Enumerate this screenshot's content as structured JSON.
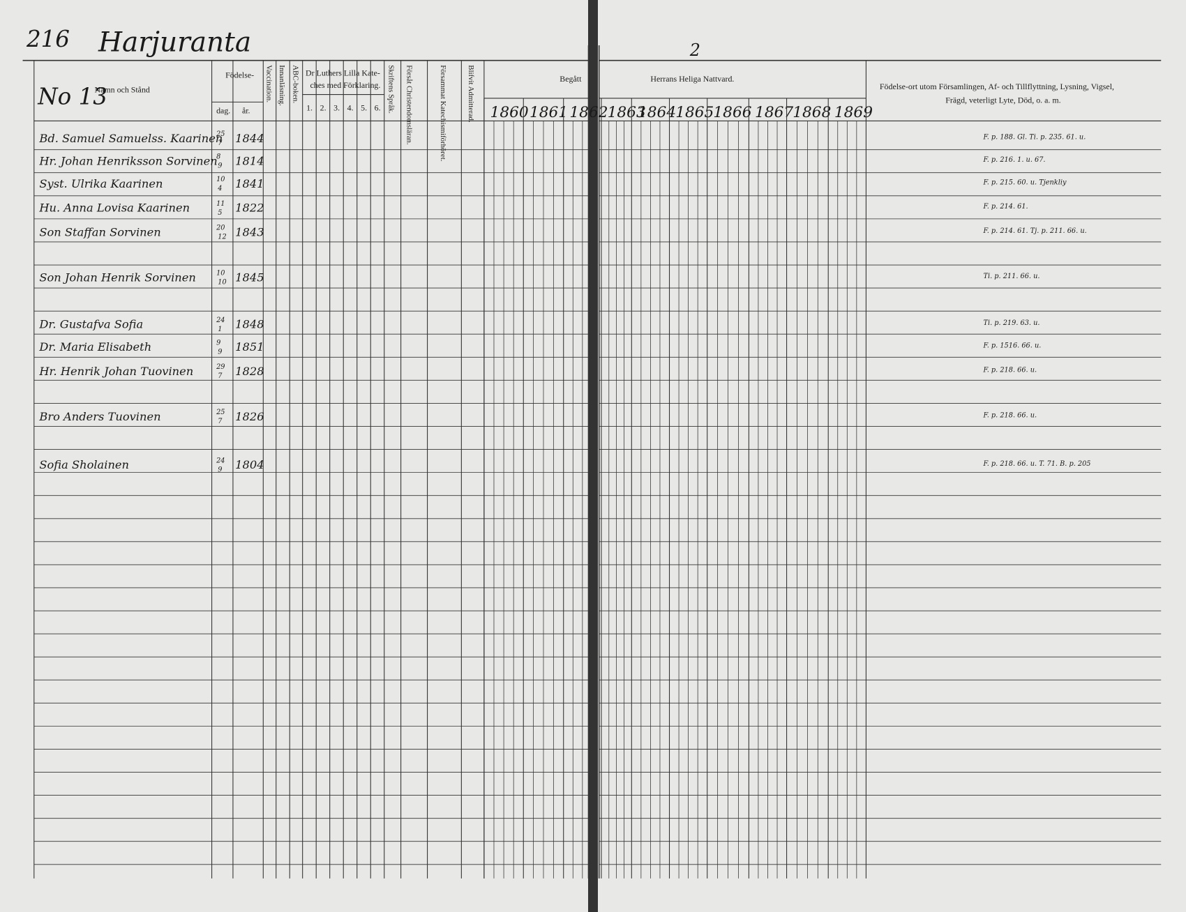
{
  "header": {
    "page_number": "216",
    "village": "Harjuranta",
    "right_page_number": "2",
    "household_number": "No 13"
  },
  "columns": {
    "name": "Namn och Stånd",
    "birth": "Födelse-",
    "birth_day": "dag.",
    "birth_year": "år.",
    "vaccination": "Vaccination.",
    "reading": "Innanläsning.",
    "abc": "ABC-boken.",
    "catechism_1": "Dr Luthers Lilla Kate-",
    "catechism_2": "ches med Förklaring.",
    "catechism_parts": [
      "1.",
      "2.",
      "3.",
      "4.",
      "5.",
      "6."
    ],
    "scripture": "Skriftens Språk.",
    "christianity": "Försåt Christendomsläran.",
    "catechism_exam": "Försammat Katechismiförhöret.",
    "admitted": "Blifvit Admitterad.",
    "communion_1": "Begått",
    "communion_2": "Herrans Heliga Nattvard.",
    "remarks_1": "Födelse-ort utom Församlingen, Af- och Tillflyttning, Lysning, Vigsel,",
    "remarks_2": "Frägd, veterligt Lyte, Död, o. a. m."
  },
  "years": [
    "1860",
    "1861",
    "1862",
    "1863",
    "1864",
    "1865",
    "1866",
    "1867",
    "1868",
    "1869"
  ],
  "rows": [
    {
      "name": "Bd. Samuel Samuelss. Kaarinen",
      "day": "25",
      "month": "7",
      "year": "1844",
      "remark": "F. p. 188. Gl. Ti. p. 235. 61. u."
    },
    {
      "name": "Hr. Johan Henriksson Sorvinen",
      "day": "8",
      "month": "9",
      "year": "1814",
      "remark": "F. p. 216. 1. u. 67."
    },
    {
      "name": "Syst. Ulrika Kaarinen",
      "day": "10",
      "month": "4",
      "year": "1841",
      "remark": "F. p. 215. 60. u. Tjenkliy"
    },
    {
      "name": "Hu. Anna Lovisa Kaarinen",
      "day": "11",
      "month": "5",
      "year": "1822",
      "remark": "F. p. 214. 61."
    },
    {
      "name": "Son Staffan Sorvinen",
      "day": "20",
      "month": "12",
      "year": "1843",
      "remark": "F. p. 214. 61. Tj. p. 211. 66. u."
    },
    {
      "name": "Son Johan Henrik Sorvinen",
      "day": "10",
      "month": "10",
      "year": "1845",
      "remark": "Ti. p. 211. 66. u."
    },
    {
      "name": "Dr. Gustafva Sofia",
      "day": "24",
      "month": "1",
      "year": "1848",
      "remark": "Ti. p. 219. 63. u."
    },
    {
      "name": "Dr. Maria Elisabeth",
      "day": "9",
      "month": "9",
      "year": "1851",
      "remark": "F. p. 1516. 66. u."
    },
    {
      "name": "Hr. Henrik Johan Tuovinen",
      "day": "29",
      "month": "7",
      "year": "1828",
      "remark": "F. p. 218. 66. u."
    },
    {
      "name": "Bro Anders Tuovinen",
      "day": "25",
      "month": "7",
      "year": "1826",
      "remark": "F. p. 218. 66. u."
    },
    {
      "name": "Sofia Sholainen",
      "day": "24",
      "month": "9",
      "year": "1804",
      "remark": "F. p. 218. 66. u. T. 71. B. p. 205"
    }
  ]
}
